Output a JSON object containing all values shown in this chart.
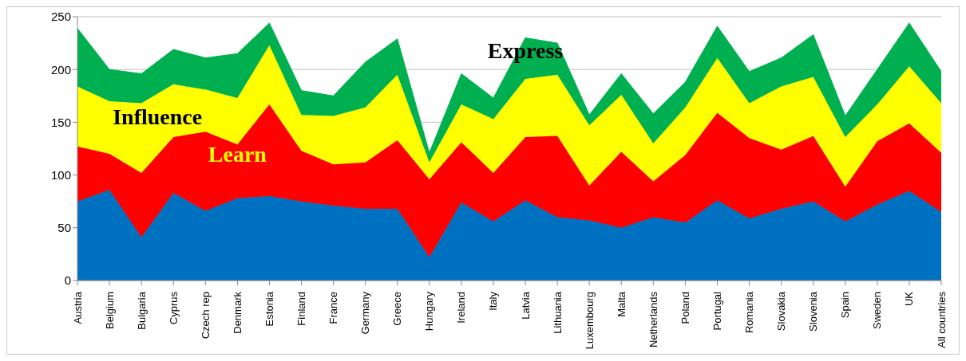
{
  "chart_data": {
    "type": "area",
    "stacked": true,
    "categories": [
      "Austria",
      "Belgium",
      "Bulgaria",
      "Cyprus",
      "Czech rep",
      "Denmark",
      "Estonia",
      "Finland",
      "France",
      "Germany",
      "Greece",
      "Hungary",
      "Ireland",
      "Italy",
      "Latvia",
      "Lithuania",
      "Luxembourg",
      "Malta",
      "Netherlands",
      "Poland",
      "Portugal",
      "Romania",
      "Slovakia",
      "Slovenia",
      "Spain",
      "Sweden",
      "UK",
      "All countries"
    ],
    "series": [
      {
        "color": "#0070c0",
        "values": [
          75,
          86,
          41,
          83,
          66,
          78,
          80,
          75,
          71,
          68,
          68,
          22,
          74,
          56,
          76,
          60,
          57,
          50,
          60,
          55,
          76,
          59,
          68,
          75,
          56,
          72,
          85,
          65
        ]
      },
      {
        "name": "Learn",
        "color": "#ff0000",
        "values": [
          52,
          34,
          61,
          53,
          75,
          51,
          87,
          48,
          39,
          44,
          65,
          74,
          57,
          46,
          60,
          77,
          33,
          72,
          34,
          64,
          83,
          76,
          56,
          62,
          33,
          60,
          64,
          56
        ]
      },
      {
        "name": "Influence",
        "color": "#ffff00",
        "values": [
          57,
          50,
          66,
          50,
          40,
          44,
          56,
          34,
          46,
          52,
          62,
          16,
          36,
          51,
          55,
          58,
          57,
          54,
          36,
          45,
          52,
          33,
          60,
          56,
          47,
          35,
          54,
          47
        ]
      },
      {
        "name": "Express",
        "color": "#00b050",
        "values": [
          55,
          30,
          28,
          33,
          30,
          42,
          21,
          23,
          19,
          43,
          34,
          9,
          29,
          20,
          39,
          30,
          10,
          20,
          28,
          24,
          30,
          30,
          27,
          40,
          20,
          33,
          41,
          30
        ]
      }
    ],
    "ylim": [
      0,
      250
    ],
    "yticks": [
      0,
      50,
      100,
      150,
      200,
      250
    ],
    "grid": "y",
    "legend": false
  }
}
